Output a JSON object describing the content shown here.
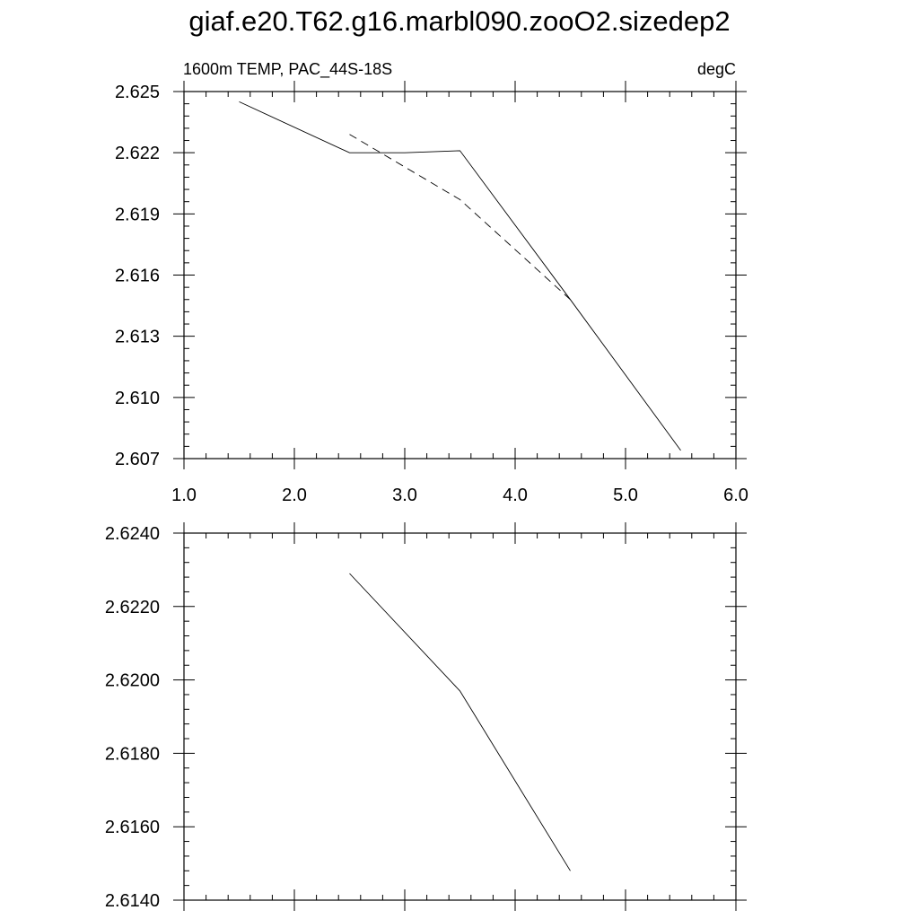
{
  "title": "giaf.e20.T62.g16.marbl090.zooO2.sizedep2",
  "chart_data": [
    {
      "type": "line",
      "left_label": "1600m TEMP, PAC_44S-18S",
      "right_label": "degC",
      "xlim": [
        1.0,
        6.0
      ],
      "ylim": [
        2.607,
        2.625
      ],
      "x_ticks": [
        "1.0",
        "2.0",
        "3.0",
        "4.0",
        "5.0",
        "6.0"
      ],
      "y_ticks": [
        "2.625",
        "2.622",
        "2.619",
        "2.616",
        "2.613",
        "2.610",
        "2.607"
      ],
      "series": [
        {
          "style": "solid",
          "x": [
            1.5,
            2.5,
            3.0,
            3.5,
            4.5,
            5.5
          ],
          "y": [
            2.6245,
            2.622,
            2.622,
            2.6221,
            2.6148,
            2.6074
          ]
        },
        {
          "style": "dashed",
          "x": [
            2.5,
            3.5,
            4.5
          ],
          "y": [
            2.6229,
            2.6197,
            2.6148
          ]
        }
      ]
    },
    {
      "type": "line",
      "xlim": [
        1.0,
        6.0
      ],
      "ylim": [
        2.614,
        2.624
      ],
      "y_ticks": [
        "2.6240",
        "2.6220",
        "2.6200",
        "2.6180",
        "2.6160",
        "2.6140"
      ],
      "series": [
        {
          "style": "solid",
          "x": [
            2.5,
            3.5,
            4.5
          ],
          "y": [
            2.6229,
            2.6197,
            2.6148
          ]
        }
      ]
    }
  ]
}
